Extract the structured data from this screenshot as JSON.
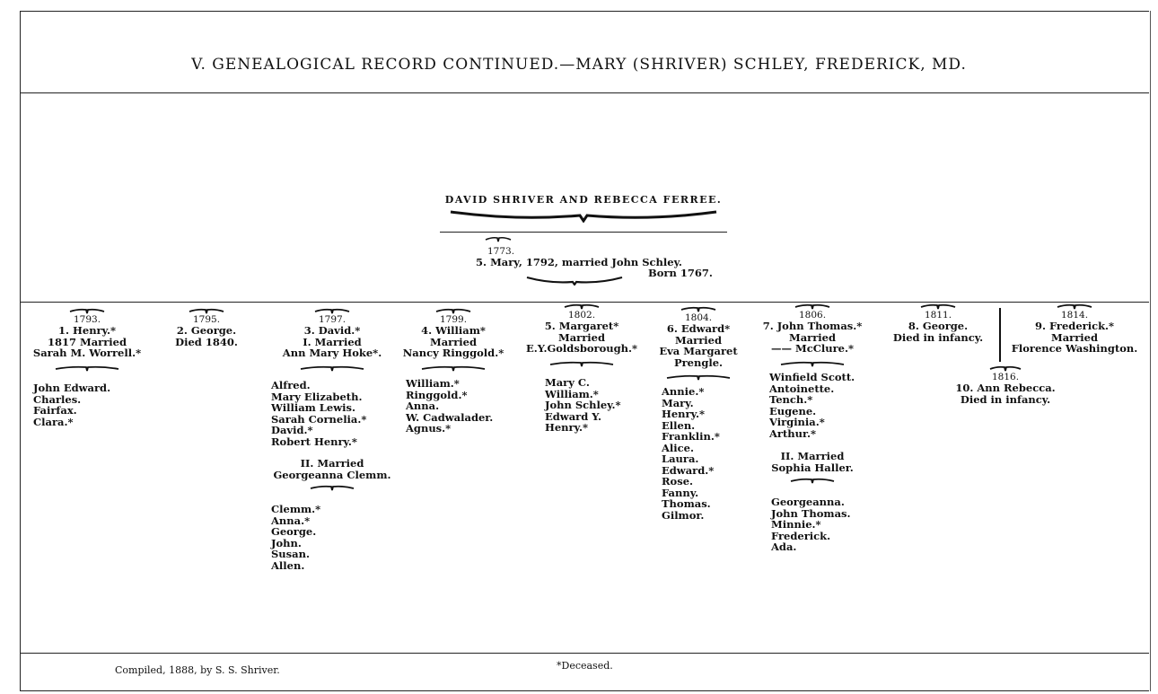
{
  "title": "V.  GENEALOGICAL RECORD CONTINUED.—MARY (SHRIVER) SCHLEY, FREDERICK, MD.",
  "parents": "DAVID SHRIVER AND REBECCA FERREE.",
  "mary": {
    "year": "1773.",
    "line": "5. Mary, 1792, married John Schley.",
    "born": "Born 1767."
  },
  "columns": [
    {
      "year": "1793.",
      "head": [
        "1. Henry.*",
        "1817 Married",
        "Sarah M. Worrell.*"
      ],
      "children": [
        "John Edward.",
        "Charles.",
        "Fairfax.",
        "Clara.*"
      ]
    },
    {
      "year": "1795.",
      "head": [
        "2. George.",
        "Died 1840."
      ],
      "children": []
    },
    {
      "year": "1797.",
      "head": [
        "3. David.*",
        "I. Married",
        "Ann Mary Hoke*."
      ],
      "children": [
        "Alfred.",
        "Mary Elizabeth.",
        "William Lewis.",
        "Sarah Cornelia.*",
        "David.*",
        "Robert Henry.*"
      ],
      "second": {
        "head": [
          "II. Married",
          "Georgeanna Clemm."
        ],
        "children": [
          "Clemm.*",
          "Anna.*",
          "George.",
          "John.",
          "Susan.",
          "Allen."
        ]
      }
    },
    {
      "year": "1799.",
      "head": [
        "4. William*",
        "Married",
        "Nancy Ringgold.*"
      ],
      "children": [
        "William.*",
        "Ringgold.*",
        "Anna.",
        "W. Cadwalader.",
        "Agnus.*"
      ]
    },
    {
      "year": "1802.",
      "head": [
        "5. Margaret*",
        "Married",
        "E.Y.Goldsborough.*"
      ],
      "children": [
        "Mary C.",
        "William.*",
        "John Schley.*",
        "Edward Y.",
        "Henry.*"
      ]
    },
    {
      "year": "1804.",
      "head": [
        "6. Edward*",
        "Married",
        "Eva Margaret",
        "Prengle."
      ],
      "children": [
        "Annie.*",
        "Mary.",
        "Henry.*",
        "Ellen.",
        "Franklin.*",
        "Alice.",
        "Laura.",
        "Edward.*",
        "Rose.",
        "Fanny.",
        "Thomas.",
        "Gilmor."
      ]
    },
    {
      "year": "1806.",
      "head": [
        "7. John Thomas.*",
        "Married",
        "—— McClure.*"
      ],
      "children": [
        "Winfield Scott.",
        "Antoinette.",
        "Tench.*",
        "Eugene.",
        "Virginia.*",
        "Arthur.*"
      ],
      "second": {
        "head": [
          "II. Married",
          "Sophia Haller."
        ],
        "children": [
          "Georgeanna.",
          "John Thomas.",
          "Minnie.*",
          "Frederick.",
          "Ada."
        ]
      }
    },
    {
      "year": "1811.",
      "head": [
        "8. George.",
        "Died in infancy."
      ],
      "children": []
    },
    {
      "year": "1814.",
      "head": [
        "9. Frederick.*",
        "Married",
        "Florence Washington."
      ],
      "children": []
    },
    {
      "year": "1816.",
      "head": [
        "10. Ann Rebecca.",
        "Died in infancy."
      ],
      "children": []
    }
  ],
  "footer": {
    "compiled": "Compiled, 1888, by S. S. Shriver.",
    "note": "*Deceased."
  }
}
